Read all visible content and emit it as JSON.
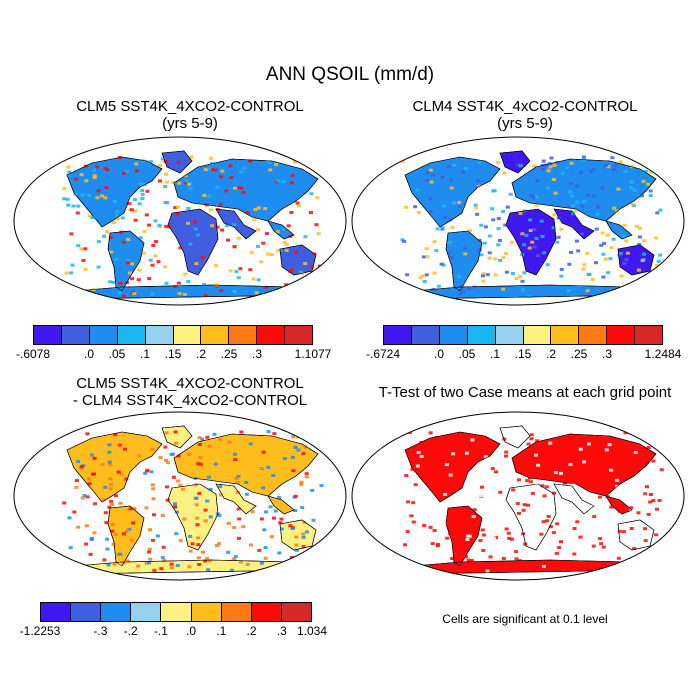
{
  "title": "ANN QSOIL (mm/d)",
  "panels": [
    {
      "title_line1": "CLM5 SST4K_4XCO2-CONTROL",
      "title_line2": "(yrs 5-9)",
      "colors": [
        "#3f18f2",
        "#3f5fe0",
        "#1f8df0",
        "#19b7f0",
        "#96d2ee",
        "#fff082",
        "#ffbe1e",
        "#ff7a14",
        "#ff0a0a",
        "#d72828"
      ],
      "tick_labels": [
        "-.6078",
        ".0",
        ".05",
        ".1",
        ".15",
        ".2",
        ".25",
        ".3",
        "1.1077"
      ]
    },
    {
      "title_line1": "CLM4 SST4K_4xCO2-CONTROL",
      "title_line2": "(yrs 5-9)",
      "colors": [
        "#3f18f2",
        "#3f5fe0",
        "#1f8df0",
        "#19b7f0",
        "#96d2ee",
        "#fff082",
        "#ffbe1e",
        "#ff7a14",
        "#ff0a0a",
        "#d72828"
      ],
      "tick_labels": [
        "-.6724",
        ".0",
        ".05",
        ".1",
        ".15",
        ".2",
        ".25",
        ".3",
        "1.2484"
      ]
    },
    {
      "title_line1": "CLM5 SST4K_4XCO2-CONTROL",
      "title_line2": "- CLM4 SST4K_4xCO2-CONTROL",
      "colors": [
        "#3f18f2",
        "#3f5fe0",
        "#1f8df0",
        "#96d2ee",
        "#fff082",
        "#ffbe1e",
        "#ff7a14",
        "#ff0a0a",
        "#d72828"
      ],
      "tick_labels": [
        "-1.2253",
        "-.3",
        "-.2",
        "-.1",
        ".0",
        ".1",
        ".2",
        ".3",
        "1.034"
      ]
    },
    {
      "title_line1": "T-Test of two Case means at each grid point",
      "title_line2": "",
      "note": "Cells are significant at 0.1 level"
    }
  ]
}
